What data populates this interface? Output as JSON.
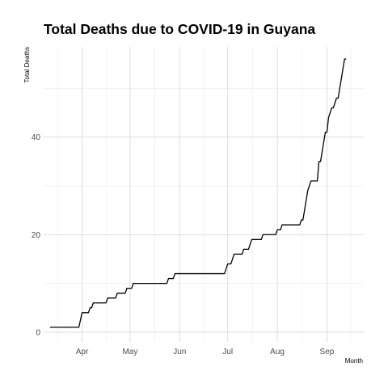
{
  "chart_data": {
    "type": "line",
    "title": "Total Deaths due to COVID-19 in Guyana",
    "xlabel": "Month",
    "ylabel": "Total Deaths",
    "x_ticks": [
      {
        "date": "2020-04-01",
        "label": "Apr"
      },
      {
        "date": "2020-05-01",
        "label": "May"
      },
      {
        "date": "2020-06-01",
        "label": "Jun"
      },
      {
        "date": "2020-07-01",
        "label": "Jul"
      },
      {
        "date": "2020-08-01",
        "label": "Aug"
      },
      {
        "date": "2020-09-01",
        "label": "Sep"
      }
    ],
    "y_ticks": [
      0,
      20,
      40
    ],
    "xlim": [
      "2020-03-08",
      "2020-09-24"
    ],
    "ylim": [
      -2,
      58.5
    ],
    "grid": true,
    "series": [
      {
        "color": "#000000",
        "points": [
          [
            "2020-03-12",
            1
          ],
          [
            "2020-03-30",
            1
          ],
          [
            "2020-04-01",
            4
          ],
          [
            "2020-04-05",
            4
          ],
          [
            "2020-04-06",
            5
          ],
          [
            "2020-04-07",
            5
          ],
          [
            "2020-04-08",
            6
          ],
          [
            "2020-04-16",
            6
          ],
          [
            "2020-04-17",
            7
          ],
          [
            "2020-04-22",
            7
          ],
          [
            "2020-04-23",
            8
          ],
          [
            "2020-04-28",
            8
          ],
          [
            "2020-04-29",
            9
          ],
          [
            "2020-05-02",
            9
          ],
          [
            "2020-05-03",
            10
          ],
          [
            "2020-05-24",
            10
          ],
          [
            "2020-05-25",
            11
          ],
          [
            "2020-05-28",
            11
          ],
          [
            "2020-05-29",
            12
          ],
          [
            "2020-06-29",
            12
          ],
          [
            "2020-07-01",
            14
          ],
          [
            "2020-07-03",
            14
          ],
          [
            "2020-07-04",
            15
          ],
          [
            "2020-07-05",
            16
          ],
          [
            "2020-07-10",
            16
          ],
          [
            "2020-07-11",
            17
          ],
          [
            "2020-07-14",
            17
          ],
          [
            "2020-07-16",
            19
          ],
          [
            "2020-07-22",
            19
          ],
          [
            "2020-07-23",
            20
          ],
          [
            "2020-07-31",
            20
          ],
          [
            "2020-08-01",
            21
          ],
          [
            "2020-08-03",
            21
          ],
          [
            "2020-08-04",
            22
          ],
          [
            "2020-08-15",
            22
          ],
          [
            "2020-08-16",
            23
          ],
          [
            "2020-08-17",
            23
          ],
          [
            "2020-08-19",
            27
          ],
          [
            "2020-08-20",
            29
          ],
          [
            "2020-08-22",
            31
          ],
          [
            "2020-08-26",
            31
          ],
          [
            "2020-08-27",
            35
          ],
          [
            "2020-08-28",
            35
          ],
          [
            "2020-08-31",
            41
          ],
          [
            "2020-09-01",
            41
          ],
          [
            "2020-09-02",
            44
          ],
          [
            "2020-09-04",
            46
          ],
          [
            "2020-09-05",
            46
          ],
          [
            "2020-09-06",
            47
          ],
          [
            "2020-09-07",
            48
          ],
          [
            "2020-09-08",
            48
          ],
          [
            "2020-09-10",
            52
          ],
          [
            "2020-09-12",
            56
          ],
          [
            "2020-09-13",
            56
          ]
        ]
      }
    ]
  }
}
